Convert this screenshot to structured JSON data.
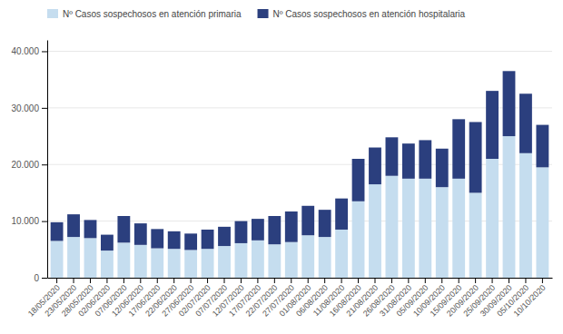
{
  "chart_data": {
    "type": "bar",
    "stacked": true,
    "categories": [
      "18/05/2020",
      "23/05/2020",
      "28/05/2020",
      "02/06/2020",
      "07/06/2020",
      "12/06/2020",
      "17/06/2020",
      "22/06/2020",
      "27/06/2020",
      "02/07/2020",
      "07/07/2020",
      "12/07/2020",
      "17/07/2020",
      "22/07/2020",
      "27/07/2020",
      "01/08/2020",
      "06/08/2020",
      "11/08/2020",
      "16/08/2020",
      "21/08/2020",
      "26/08/2020",
      "31/08/2020",
      "05/09/2020",
      "10/09/2020",
      "15/09/2020",
      "20/09/2020",
      "25/09/2020",
      "30/09/2020",
      "05/10/2020",
      "10/10/2020"
    ],
    "series": [
      {
        "name": "Nº Casos sospechosos en atención primaria",
        "color": "#c5ddef",
        "values": [
          6500,
          7200,
          7000,
          4800,
          6200,
          5800,
          5200,
          5100,
          4900,
          5100,
          5600,
          6100,
          6600,
          5900,
          6300,
          7500,
          7200,
          8500,
          13500,
          16500,
          18000,
          17500,
          17500,
          16000,
          17500,
          15000,
          21000,
          25000,
          22000,
          19500
        ]
      },
      {
        "name": "Nº Casos sospechosos en atención hospitalaria",
        "color": "#2b3f7e",
        "values": [
          3300,
          4000,
          3200,
          2800,
          4700,
          3800,
          3400,
          3100,
          2900,
          3400,
          3400,
          3900,
          3800,
          5000,
          5400,
          5200,
          4800,
          5500,
          7500,
          6500,
          6800,
          6200,
          6800,
          6800,
          10500,
          12500,
          12000,
          11500,
          10500,
          7500
        ]
      }
    ],
    "ylim": [
      0,
      42000
    ],
    "yticks": [
      0,
      {
        "value": 10000,
        "label": "10.000"
      },
      {
        "value": 20000,
        "label": "20.000"
      },
      {
        "value": 30000,
        "label": "30.000"
      },
      {
        "value": 40000,
        "label": "40.000"
      }
    ],
    "grid": true,
    "legend": "upper left"
  }
}
